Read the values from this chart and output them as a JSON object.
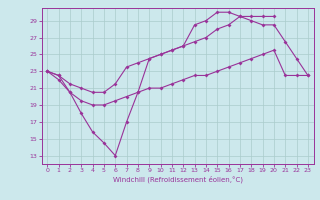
{
  "background_color": "#cce8ec",
  "grid_color": "#aacccc",
  "line_color": "#993399",
  "xlabel": "Windchill (Refroidissement éolien,°C)",
  "xlim": [
    -0.5,
    23.5
  ],
  "ylim": [
    12.0,
    30.5
  ],
  "yticks": [
    13,
    15,
    17,
    19,
    21,
    23,
    25,
    27,
    29
  ],
  "xticks": [
    0,
    1,
    2,
    3,
    4,
    5,
    6,
    7,
    8,
    9,
    10,
    11,
    12,
    13,
    14,
    15,
    16,
    17,
    18,
    19,
    20,
    21,
    22,
    23
  ],
  "curves": [
    {
      "x": [
        0,
        1,
        2,
        3,
        4,
        5,
        6,
        7,
        8,
        9,
        10,
        11,
        12,
        13,
        14,
        15,
        16,
        17,
        18,
        19,
        20
      ],
      "y": [
        23.0,
        22.5,
        20.5,
        18.0,
        15.8,
        14.5,
        13.0,
        17.0,
        20.5,
        24.5,
        25.0,
        25.5,
        26.0,
        28.5,
        29.0,
        30.0,
        30.0,
        29.5,
        29.5,
        29.5,
        29.5
      ]
    },
    {
      "x": [
        0,
        1,
        2,
        3,
        4,
        5,
        6,
        7,
        8,
        9,
        10,
        11,
        12,
        13,
        14,
        15,
        16,
        17,
        18,
        19,
        20,
        21,
        22,
        23
      ],
      "y": [
        23.0,
        22.5,
        21.5,
        21.0,
        20.5,
        20.5,
        21.5,
        23.5,
        24.0,
        24.5,
        25.0,
        25.5,
        26.0,
        26.5,
        27.0,
        28.0,
        28.5,
        29.5,
        29.0,
        28.5,
        28.5,
        26.5,
        24.5,
        22.5
      ]
    },
    {
      "x": [
        0,
        1,
        2,
        3,
        4,
        5,
        6,
        7,
        8,
        9,
        10,
        11,
        12,
        13,
        14,
        15,
        16,
        17,
        18,
        19,
        20,
        21,
        22,
        23
      ],
      "y": [
        23.0,
        22.0,
        20.5,
        19.5,
        19.0,
        19.0,
        19.5,
        20.0,
        20.5,
        21.0,
        21.0,
        21.5,
        22.0,
        22.5,
        22.5,
        23.0,
        23.5,
        24.0,
        24.5,
        25.0,
        25.5,
        22.5,
        22.5,
        22.5
      ]
    }
  ]
}
